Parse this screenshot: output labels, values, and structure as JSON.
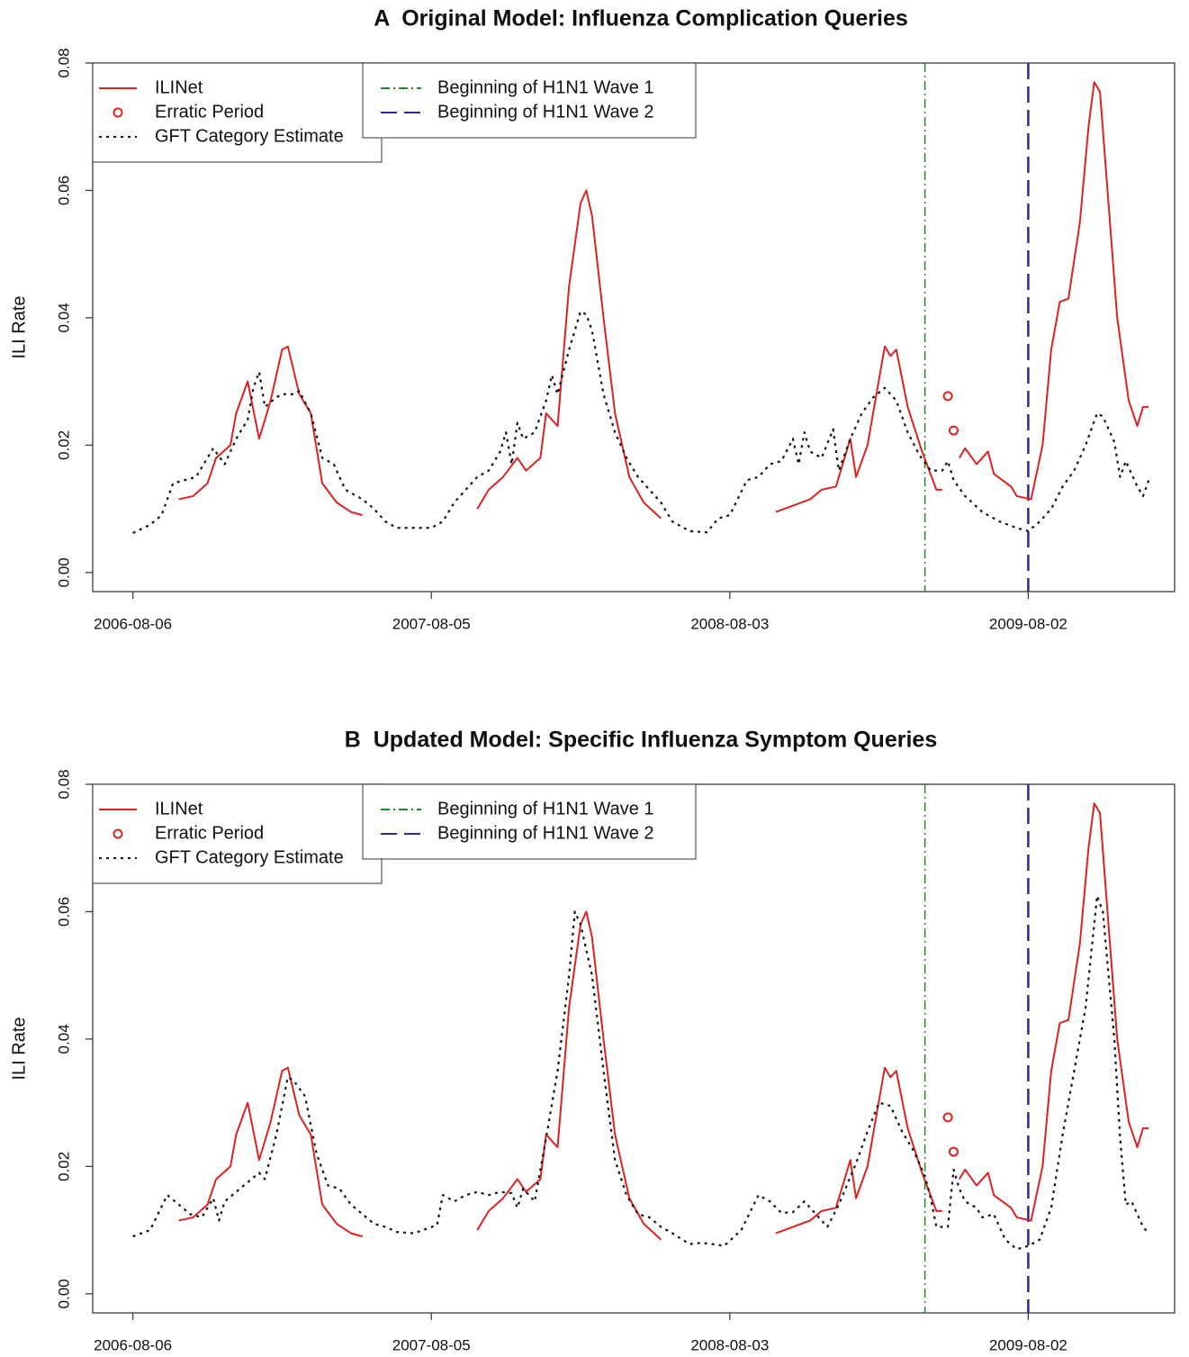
{
  "chart_data": [
    {
      "type": "line",
      "title": "A  Original Model: Influenza Complication Queries",
      "ylabel": "ILI Rate",
      "xlim": [
        -7,
        181.5
      ],
      "xticks": [
        {
          "value": 0,
          "label": "2006-08-06"
        },
        {
          "value": 52,
          "label": "2007-08-05"
        },
        {
          "value": 104,
          "label": "2008-08-03"
        },
        {
          "value": 156,
          "label": "2009-08-02"
        }
      ],
      "ylim": [
        -0.003,
        0.08
      ],
      "yticks": [
        {
          "value": 0,
          "label": "0.00"
        },
        {
          "value": 0.02,
          "label": "0.02"
        },
        {
          "value": 0.04,
          "label": "0.04"
        },
        {
          "value": 0.06,
          "label": "0.06"
        },
        {
          "value": 0.08,
          "label": "0.08"
        }
      ],
      "series": [
        {
          "name": "ILINet",
          "color": "#dd2222",
          "style": "line",
          "dash": "solid",
          "x": [
            8,
            10.5,
            13,
            14.5,
            17,
            18,
            20,
            22,
            24,
            26,
            27,
            29,
            31,
            33,
            35.5,
            38,
            40,
            50,
            60,
            62,
            64.5,
            67,
            68.5,
            71,
            72,
            74,
            76,
            78,
            79,
            80,
            82,
            84,
            86.5,
            89,
            92,
            100,
            112,
            115,
            118,
            120,
            122.5,
            125,
            126,
            128,
            131,
            132,
            133,
            135,
            137.5,
            140,
            141,
            142.5,
            144,
            145,
            147,
            149,
            150,
            153,
            154,
            156.5,
            158.5,
            160,
            161.5,
            163,
            165,
            166.5,
            167.5,
            168.5,
            171.5,
            173.5,
            175,
            176,
            177
          ],
          "values": [
            0.0115,
            0.012,
            0.014,
            0.018,
            0.02,
            0.025,
            0.03,
            0.021,
            0.027,
            0.035,
            0.0355,
            0.028,
            0.025,
            0.014,
            0.011,
            0.0095,
            0.009,
            null,
            0.01,
            0.013,
            0.015,
            0.018,
            0.016,
            0.018,
            0.025,
            0.023,
            0.045,
            0.058,
            0.06,
            0.056,
            0.04,
            0.025,
            0.015,
            0.011,
            0.0085,
            null,
            0.0095,
            0.0105,
            0.0115,
            0.013,
            0.0135,
            0.021,
            0.015,
            0.02,
            0.0355,
            0.034,
            0.035,
            0.026,
            0.019,
            0.013,
            0.013,
            null,
            0.018,
            0.0195,
            0.017,
            0.019,
            0.0155,
            0.0135,
            0.012,
            0.0115,
            0.02,
            0.035,
            0.0425,
            0.043,
            0.055,
            0.07,
            0.077,
            0.0755,
            0.04,
            0.027,
            0.023,
            0.026,
            0.026
          ]
        },
        {
          "name": "Erratic Period",
          "color": "#dd2222",
          "style": "points",
          "x": [
            142,
            143
          ],
          "values": [
            0.0277,
            0.0223
          ]
        },
        {
          "name": "GFT Category Estimate",
          "color": "#111111",
          "style": "line",
          "dash": "dotted",
          "x": [
            0,
            3,
            5,
            7,
            9,
            11,
            13,
            14,
            16,
            18,
            20,
            21,
            22,
            23,
            25,
            26,
            28,
            29,
            31,
            33,
            35,
            37,
            40,
            42,
            44,
            46,
            50,
            52,
            54,
            56,
            58,
            60,
            62,
            64,
            65,
            66,
            67,
            68,
            70,
            72,
            73,
            74,
            76,
            78,
            79,
            80,
            82,
            84,
            86,
            88,
            90,
            92,
            94,
            97,
            100,
            102,
            104,
            107,
            109,
            111,
            113,
            115,
            116,
            117,
            118,
            120,
            122,
            123,
            125,
            127,
            129,
            131,
            133,
            135,
            137,
            139,
            141,
            142,
            143,
            145,
            148,
            151,
            154,
            156,
            158,
            160,
            162,
            164,
            166,
            168,
            169,
            171,
            172,
            173,
            175,
            176,
            177
          ],
          "values": [
            0.0062,
            0.0075,
            0.009,
            0.014,
            0.0145,
            0.015,
            0.018,
            0.0195,
            0.017,
            0.021,
            0.024,
            0.029,
            0.0315,
            0.026,
            0.0275,
            0.028,
            0.028,
            0.0285,
            0.025,
            0.018,
            0.017,
            0.013,
            0.0115,
            0.01,
            0.008,
            0.007,
            0.007,
            0.007,
            0.008,
            0.011,
            0.013,
            0.015,
            0.016,
            0.019,
            0.022,
            0.017,
            0.0235,
            0.021,
            0.022,
            0.027,
            0.031,
            0.028,
            0.035,
            0.041,
            0.0405,
            0.038,
            0.028,
            0.022,
            0.018,
            0.015,
            0.013,
            0.011,
            0.008,
            0.0065,
            0.0063,
            0.0085,
            0.009,
            0.0145,
            0.015,
            0.017,
            0.0175,
            0.021,
            0.017,
            0.022,
            0.019,
            0.018,
            0.0225,
            0.016,
            0.021,
            0.025,
            0.0275,
            0.029,
            0.027,
            0.022,
            0.0185,
            0.016,
            0.016,
            0.0175,
            0.0145,
            0.012,
            0.0095,
            0.008,
            0.007,
            0.0065,
            0.008,
            0.01,
            0.0135,
            0.016,
            0.02,
            0.025,
            0.0245,
            0.0205,
            0.015,
            0.0175,
            0.0135,
            0.012,
            0.0145
          ]
        }
      ],
      "vlines": [
        {
          "name": "Beginning of H1N1 Wave 1",
          "x": 138,
          "color": "#1e8c1e",
          "dash": "dashdot"
        },
        {
          "name": "Beginning of H1N1 Wave 2",
          "x": 156,
          "color": "#2a2a9a",
          "dash": "longdash"
        }
      ]
    },
    {
      "type": "line",
      "title": "B  Updated Model: Specific Influenza Symptom Queries",
      "ylabel": "ILI Rate",
      "xlim": [
        -7,
        181.5
      ],
      "xticks": [
        {
          "value": 0,
          "label": "2006-08-06"
        },
        {
          "value": 52,
          "label": "2007-08-05"
        },
        {
          "value": 104,
          "label": "2008-08-03"
        },
        {
          "value": 156,
          "label": "2009-08-02"
        }
      ],
      "ylim": [
        -0.003,
        0.08
      ],
      "yticks": [
        {
          "value": 0,
          "label": "0.00"
        },
        {
          "value": 0.02,
          "label": "0.02"
        },
        {
          "value": 0.04,
          "label": "0.04"
        },
        {
          "value": 0.06,
          "label": "0.06"
        },
        {
          "value": 0.08,
          "label": "0.08"
        }
      ],
      "series": [
        {
          "name": "ILINet",
          "color": "#dd2222",
          "style": "line",
          "dash": "solid",
          "x": [
            8,
            10.5,
            13,
            14.5,
            17,
            18,
            20,
            22,
            24,
            26,
            27,
            29,
            31,
            33,
            35.5,
            38,
            40,
            50,
            60,
            62,
            64.5,
            67,
            68.5,
            71,
            72,
            74,
            76,
            78,
            79,
            80,
            82,
            84,
            86.5,
            89,
            92,
            100,
            112,
            115,
            118,
            120,
            122.5,
            125,
            126,
            128,
            131,
            132,
            133,
            135,
            137.5,
            140,
            141,
            142.5,
            144,
            145,
            147,
            149,
            150,
            153,
            154,
            156.5,
            158.5,
            160,
            161.5,
            163,
            165,
            166.5,
            167.5,
            168.5,
            171.5,
            173.5,
            175,
            176,
            177
          ],
          "values": [
            0.0115,
            0.012,
            0.014,
            0.018,
            0.02,
            0.025,
            0.03,
            0.021,
            0.027,
            0.035,
            0.0355,
            0.028,
            0.025,
            0.014,
            0.011,
            0.0095,
            0.009,
            null,
            0.01,
            0.013,
            0.015,
            0.018,
            0.016,
            0.018,
            0.025,
            0.023,
            0.045,
            0.058,
            0.06,
            0.056,
            0.04,
            0.025,
            0.015,
            0.011,
            0.0085,
            null,
            0.0095,
            0.0105,
            0.0115,
            0.013,
            0.0135,
            0.021,
            0.015,
            0.02,
            0.0355,
            0.034,
            0.035,
            0.026,
            0.019,
            0.013,
            0.013,
            null,
            0.018,
            0.0195,
            0.017,
            0.019,
            0.0155,
            0.0135,
            0.012,
            0.0115,
            0.02,
            0.035,
            0.0425,
            0.043,
            0.055,
            0.07,
            0.077,
            0.0755,
            0.04,
            0.027,
            0.023,
            0.026,
            0.026
          ]
        },
        {
          "name": "Erratic Period",
          "color": "#dd2222",
          "style": "points",
          "x": [
            142,
            143
          ],
          "values": [
            0.0277,
            0.0223
          ]
        },
        {
          "name": "GFT Category Estimate",
          "color": "#111111",
          "style": "line",
          "dash": "dotted",
          "x": [
            0,
            3,
            6,
            8,
            10,
            12,
            14,
            15,
            16,
            18,
            20,
            22,
            23,
            25,
            27,
            28,
            30,
            32,
            34,
            36,
            38,
            40,
            42,
            44,
            46,
            49,
            53,
            54,
            56,
            58,
            60,
            62,
            64,
            66,
            67,
            68,
            70,
            72,
            74,
            76,
            77,
            78,
            80,
            82,
            84,
            86,
            88,
            90,
            92,
            94,
            97,
            99,
            101,
            103,
            106,
            109,
            111,
            113,
            115,
            117,
            119,
            121,
            123,
            126,
            128,
            130,
            132,
            134,
            136,
            138,
            139,
            140,
            142,
            143,
            144,
            145,
            147,
            148,
            150,
            152,
            154,
            156,
            158,
            160,
            162,
            164,
            166,
            168,
            169,
            171,
            172,
            173,
            174,
            176,
            177
          ],
          "values": [
            0.009,
            0.01,
            0.0155,
            0.014,
            0.0125,
            0.012,
            0.015,
            0.0115,
            0.0145,
            0.016,
            0.0175,
            0.019,
            0.018,
            0.025,
            0.034,
            0.0335,
            0.031,
            0.022,
            0.017,
            0.0165,
            0.014,
            0.0125,
            0.011,
            0.0105,
            0.0097,
            0.0095,
            0.0108,
            0.0155,
            0.0145,
            0.0155,
            0.016,
            0.0155,
            0.016,
            0.0158,
            0.0135,
            0.0165,
            0.0145,
            0.0245,
            0.035,
            0.05,
            0.06,
            0.058,
            0.05,
            0.035,
            0.021,
            0.0155,
            0.0125,
            0.012,
            0.0105,
            0.0095,
            0.0078,
            0.008,
            0.0078,
            0.0075,
            0.01,
            0.0155,
            0.0145,
            0.0127,
            0.0128,
            0.0145,
            0.0125,
            0.0105,
            0.014,
            0.0205,
            0.0255,
            0.03,
            0.0295,
            0.0255,
            0.0225,
            0.0185,
            0.015,
            0.0105,
            0.0105,
            0.0195,
            0.0165,
            0.0145,
            0.0135,
            0.012,
            0.0125,
            0.0085,
            0.007,
            0.0075,
            0.0085,
            0.0135,
            0.025,
            0.035,
            0.045,
            0.0625,
            0.06,
            0.04,
            0.0245,
            0.014,
            0.0145,
            0.0105,
            0.0095
          ]
        }
      ],
      "vlines": [
        {
          "name": "Beginning of H1N1 Wave 1",
          "x": 138,
          "color": "#1e8c1e",
          "dash": "dashdot"
        },
        {
          "name": "Beginning of H1N1 Wave 2",
          "x": 156,
          "color": "#2a2a9a",
          "dash": "longdash"
        }
      ]
    }
  ]
}
